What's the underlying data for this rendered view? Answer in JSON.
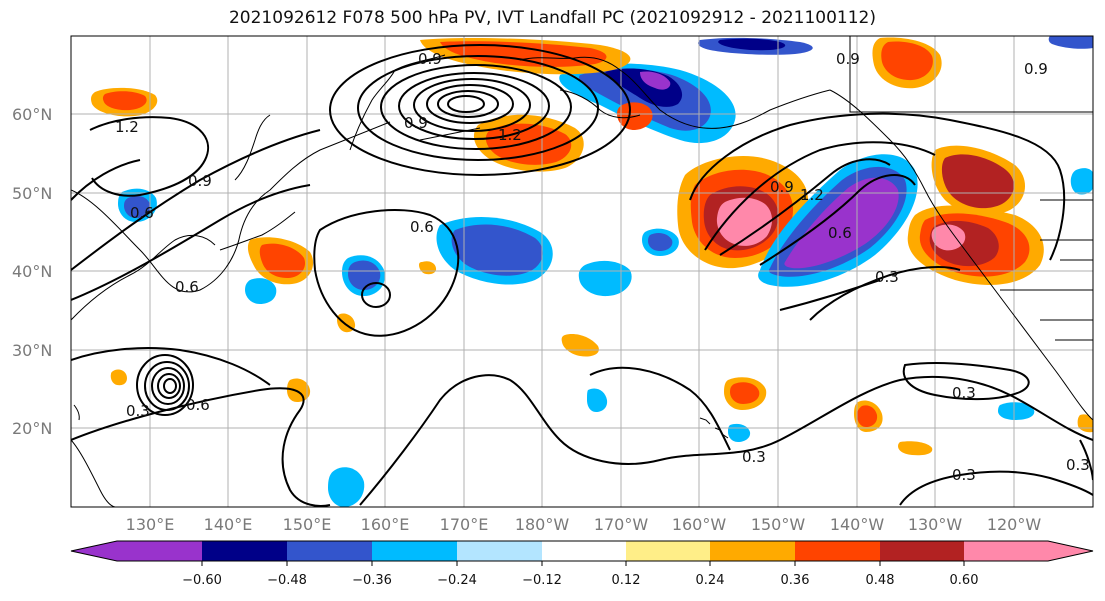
{
  "title": "2021092612 F078 500 hPa PV, IVT Landfall PC (2021092912 - 2021100112)",
  "map": {
    "lat_labels": [
      "60°N",
      "50°N",
      "40°N",
      "30°N",
      "20°N"
    ],
    "lon_labels": [
      "130°E",
      "140°E",
      "150°E",
      "160°E",
      "170°E",
      "180°W",
      "170°W",
      "160°W",
      "150°W",
      "140°W",
      "130°W",
      "120°W"
    ]
  },
  "contour_labels": [
    "0.9",
    "0.9",
    "0.9",
    "1.2",
    "1.2",
    "0.9",
    "0.6",
    "0.6",
    "0.6",
    "0.3",
    "0.3",
    "0.3",
    "0.3",
    "0.3",
    "0.9",
    "1.2",
    "0.6",
    "0.3",
    "0.6",
    "0.9"
  ],
  "colorbar": {
    "colors": [
      "#9933cc",
      "#000088",
      "#3355cc",
      "#00bbff",
      "#b3e5ff",
      "#ffffff",
      "#ffee88",
      "#ffaa00",
      "#ff4400",
      "#b22222",
      "#ff88aa"
    ],
    "tick_labels": [
      "−0.60",
      "−0.48",
      "−0.36",
      "−0.24",
      "−0.12",
      "0.12",
      "0.24",
      "0.36",
      "0.48",
      "0.60"
    ]
  }
}
